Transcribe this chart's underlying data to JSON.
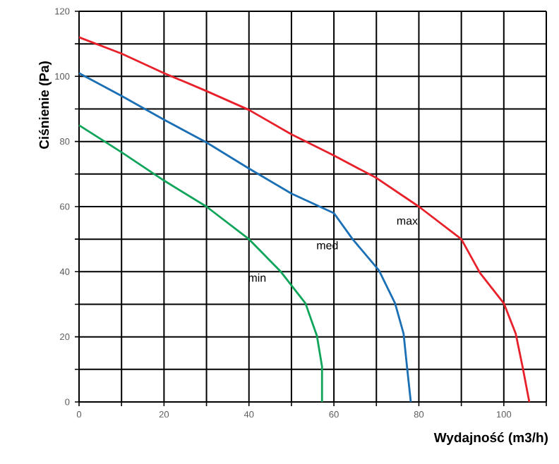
{
  "chart_data": {
    "type": "line",
    "xlabel": "Wydajność (m3/h)",
    "ylabel": "Ciśnienie (Pa)",
    "xlim": [
      0,
      110
    ],
    "ylim": [
      0,
      120
    ],
    "xticks": [
      0,
      {
        "value": 10,
        "label": null
      },
      20,
      {
        "value": 30,
        "label": null
      },
      40,
      {
        "value": 50,
        "label": null
      },
      60,
      {
        "value": 70,
        "label": null
      },
      80,
      {
        "value": 90,
        "label": null
      },
      100,
      {
        "value": 110,
        "label": null
      }
    ],
    "yticks": [
      0,
      {
        "value": 10,
        "label": null
      },
      20,
      {
        "value": 30,
        "label": null
      },
      40,
      {
        "value": 50,
        "label": null
      },
      60,
      {
        "value": 70,
        "label": null
      },
      80,
      {
        "value": 90,
        "label": null
      },
      100,
      {
        "value": 110,
        "label": null
      },
      120
    ],
    "grid": true,
    "legend": false,
    "marker": "none",
    "line_style": "solid",
    "series": [
      {
        "name": "max",
        "color": "#e8202a",
        "x": [
          0,
          10,
          20,
          30,
          40,
          50,
          60,
          70,
          80,
          90,
          94.4,
          100,
          102.8,
          104.4,
          106
        ],
        "values": [
          112,
          107,
          101,
          95.5,
          89.7,
          82.2,
          75.7,
          68.8,
          60,
          50,
          39.6,
          30.3,
          21,
          10.9,
          0
        ]
      },
      {
        "name": "med",
        "color": "#1a6fb5",
        "x": [
          0,
          10,
          20,
          30,
          40,
          50,
          60,
          64.4,
          70.6,
          74.4,
          76.4,
          77.2,
          78.1
        ],
        "values": [
          101,
          94,
          86.7,
          79.7,
          71.7,
          64,
          58,
          50,
          40.4,
          30.3,
          21,
          10.9,
          0
        ]
      },
      {
        "name": "min",
        "color": "#10a55a",
        "x": [
          0,
          10,
          20,
          30,
          40,
          47.5,
          53.3,
          56,
          57.2,
          57.2
        ],
        "values": [
          85,
          76.7,
          68,
          60,
          50,
          40,
          30.3,
          20.3,
          10.9,
          0
        ]
      }
    ]
  }
}
